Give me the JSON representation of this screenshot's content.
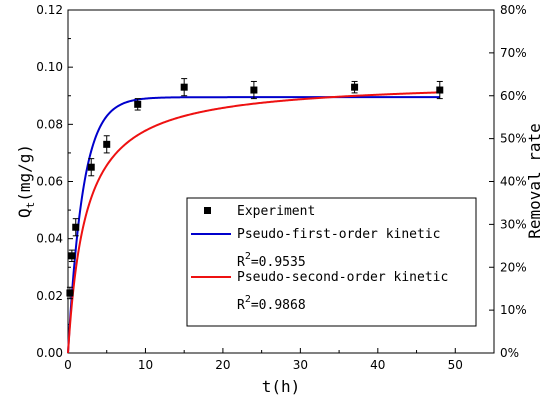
{
  "chart_data": {
    "type": "scatter",
    "xlabel": "t(h)",
    "ylabel_main": "Q",
    "ylabel_sub": "t",
    "ylabel_unit": "(mg/g)",
    "ylabel_right": "Removal rate",
    "xlim": [
      0,
      55
    ],
    "ylim": [
      0,
      0.12
    ],
    "ylim_right": [
      0,
      80
    ],
    "x_ticks": [
      0,
      10,
      20,
      30,
      40,
      50
    ],
    "x_tick_labels": [
      "0",
      "10",
      "20",
      "30",
      "40",
      "50"
    ],
    "y_ticks": [
      0,
      0.02,
      0.04,
      0.06,
      0.08,
      0.1,
      0.12
    ],
    "y_tick_labels": [
      "0.00",
      "0.02",
      "0.04",
      "0.06",
      "0.08",
      "0.10",
      "0.12"
    ],
    "y_right_ticks": [
      0,
      10,
      20,
      30,
      40,
      50,
      60,
      70,
      80
    ],
    "y_right_tick_labels": [
      "0%",
      "10%",
      "20%",
      "30%",
      "40%",
      "50%",
      "60%",
      "70%",
      "80%"
    ],
    "experiment": {
      "name": "Experiment",
      "color": "#000000",
      "x": [
        0.25,
        0.5,
        1,
        3,
        5,
        9,
        15,
        24,
        37,
        48
      ],
      "y": [
        0.021,
        0.034,
        0.044,
        0.065,
        0.073,
        0.087,
        0.093,
        0.092,
        0.093,
        0.092
      ],
      "err": [
        0.002,
        0.002,
        0.003,
        0.003,
        0.003,
        0.002,
        0.003,
        0.003,
        0.002,
        0.003
      ]
    },
    "fits": [
      {
        "name": "Pseudo-first-order kinetic",
        "r2_label": "R",
        "r2_sup": "2",
        "r2_value": "=0.9535",
        "color": "#0000cc",
        "model": "pfo",
        "qe": 0.0895,
        "k": 0.52
      },
      {
        "name": "Pseudo-second-order kinetic",
        "r2_label": "R",
        "r2_sup": "2",
        "r2_value": "=0.9868",
        "color": "#ee1111",
        "model": "pso",
        "qe": 0.0955,
        "k": 4.6
      }
    ],
    "x_max_fit": 48,
    "legend_position": "center-right"
  }
}
